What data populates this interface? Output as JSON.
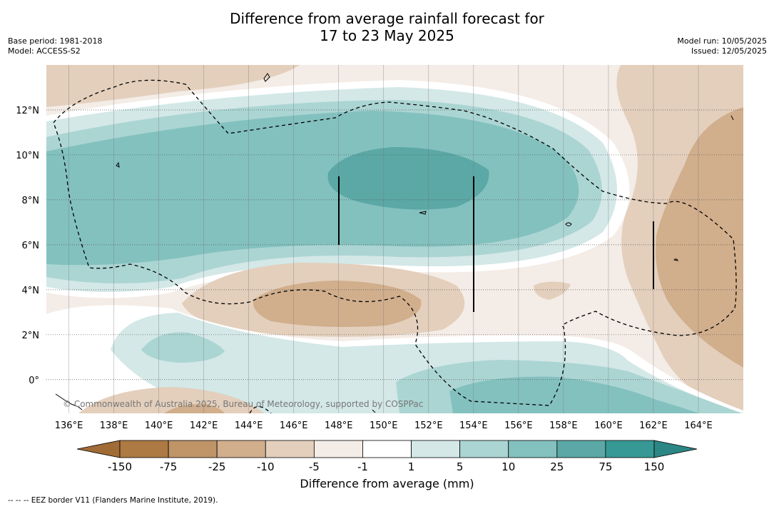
{
  "header": {
    "title_line1": "Difference from average rainfall forecast for",
    "title_line2": "17 to 23 May 2025",
    "base_period": "Base period: 1981-2018",
    "model": "Model: ACCESS-S2",
    "model_run": "Model run: 10/05/2025",
    "issued": "Issued: 12/05/2025"
  },
  "map": {
    "copyright": "© Commonwealth of Australia 2025, Bureau of Meteorology, supported by COSPPac",
    "lon_labels": [
      "136°E",
      "138°E",
      "140°E",
      "142°E",
      "144°E",
      "146°E",
      "148°E",
      "150°E",
      "152°E",
      "154°E",
      "156°E",
      "158°E",
      "160°E",
      "162°E",
      "164°E"
    ],
    "lon_values": [
      136,
      138,
      140,
      142,
      144,
      146,
      148,
      150,
      152,
      154,
      156,
      158,
      160,
      162,
      164
    ],
    "lat_labels": [
      "12°N",
      "10°N",
      "8°N",
      "6°N",
      "4°N",
      "2°N",
      "0°"
    ],
    "lat_values": [
      12,
      10,
      8,
      6,
      4,
      2,
      0
    ],
    "extent": {
      "lon_min": 135,
      "lon_max": 166,
      "lat_min": -1.5,
      "lat_max": 14
    }
  },
  "colorbar": {
    "title": "Difference from average (mm)",
    "tick_labels": [
      "-150",
      "-75",
      "-25",
      "-10",
      "-5",
      "-1",
      "1",
      "5",
      "10",
      "25",
      "75",
      "150"
    ],
    "colors": [
      "#ad7a43",
      "#bf9467",
      "#d1ae8c",
      "#e3cfbc",
      "#f4ece6",
      "#ffffff",
      "#d3e8e7",
      "#abd5d3",
      "#83c1bf",
      "#5ba8a6",
      "#379995"
    ],
    "under_color": "#a16b36",
    "over_color": "#2b8684"
  },
  "legend": {
    "eez_note": "--  --  -- EEZ border V11 (Flanders Marine Institute, 2019)."
  }
}
